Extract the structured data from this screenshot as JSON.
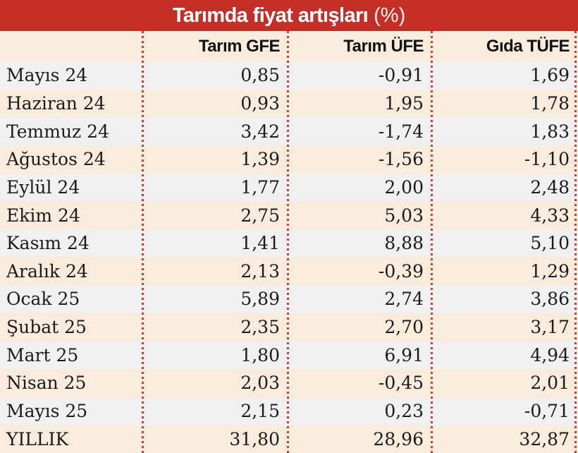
{
  "title": {
    "main": "Tarımda fiyat artışları",
    "suffix": "(%)"
  },
  "colors": {
    "title_bar_red": "#c32f27",
    "separator_red": "#cf3a2a",
    "row_cream": "#f9ecdd",
    "row_gray": "#f0f0f1",
    "title_text": "#ffffff",
    "body_text": "#1b1b1b"
  },
  "table": {
    "columns": [
      "Tarım GFE",
      "Tarım ÜFE",
      "Gıda TÜFE"
    ],
    "rows": [
      {
        "label": "Mayıs 24",
        "gfe": "0,85",
        "ufe": "-0,91",
        "tufe": "1,69"
      },
      {
        "label": "Haziran 24",
        "gfe": "0,93",
        "ufe": "1,95",
        "tufe": "1,78"
      },
      {
        "label": "Temmuz 24",
        "gfe": "3,42",
        "ufe": "-1,74",
        "tufe": "1,83"
      },
      {
        "label": "Ağustos 24",
        "gfe": "1,39",
        "ufe": "-1,56",
        "tufe": "-1,10"
      },
      {
        "label": "Eylül 24",
        "gfe": "1,77",
        "ufe": "2,00",
        "tufe": "2,48"
      },
      {
        "label": "Ekim 24",
        "gfe": "2,75",
        "ufe": "5,03",
        "tufe": "4,33"
      },
      {
        "label": "Kasım 24",
        "gfe": "1,41",
        "ufe": "8,88",
        "tufe": "5,10"
      },
      {
        "label": "Aralık 24",
        "gfe": "2,13",
        "ufe": "-0,39",
        "tufe": "1,29"
      },
      {
        "label": "Ocak 25",
        "gfe": "5,89",
        "ufe": "2,74",
        "tufe": "3,86"
      },
      {
        "label": "Şubat 25",
        "gfe": "2,35",
        "ufe": "2,70",
        "tufe": "3,17"
      },
      {
        "label": "Mart 25",
        "gfe": "1,80",
        "ufe": "6,91",
        "tufe": "4,94"
      },
      {
        "label": "Nisan 25",
        "gfe": "2,03",
        "ufe": "-0,45",
        "tufe": "2,01"
      },
      {
        "label": "Mayıs 25",
        "gfe": "2,15",
        "ufe": "0,23",
        "tufe": "-0,71"
      },
      {
        "label": "YILLIK",
        "gfe": "31,80",
        "ufe": "28,96",
        "tufe": "32,87"
      }
    ]
  },
  "chart_data": {
    "type": "table",
    "title": "Tarımda fiyat artışları (%)",
    "categories": [
      "Mayıs 24",
      "Haziran 24",
      "Temmuz 24",
      "Ağustos 24",
      "Eylül 24",
      "Ekim 24",
      "Kasım 24",
      "Aralık 24",
      "Ocak 25",
      "Şubat 25",
      "Mart 25",
      "Nisan 25",
      "Mayıs 25",
      "YILLIK"
    ],
    "series": [
      {
        "name": "Tarım GFE",
        "values": [
          0.85,
          0.93,
          3.42,
          1.39,
          1.77,
          2.75,
          1.41,
          2.13,
          5.89,
          2.35,
          1.8,
          2.03,
          2.15,
          31.8
        ]
      },
      {
        "name": "Tarım ÜFE",
        "values": [
          -0.91,
          1.95,
          -1.74,
          -1.56,
          2.0,
          5.03,
          8.88,
          -0.39,
          2.74,
          2.7,
          6.91,
          -0.45,
          0.23,
          28.96
        ]
      },
      {
        "name": "Gıda TÜFE",
        "values": [
          1.69,
          1.78,
          1.83,
          -1.1,
          2.48,
          4.33,
          5.1,
          1.29,
          3.86,
          3.17,
          4.94,
          2.01,
          -0.71,
          32.87
        ]
      }
    ],
    "layout": {
      "decimal_separator": ",",
      "value_alignment": "right",
      "grid": "dotted-vertical-separators"
    }
  }
}
